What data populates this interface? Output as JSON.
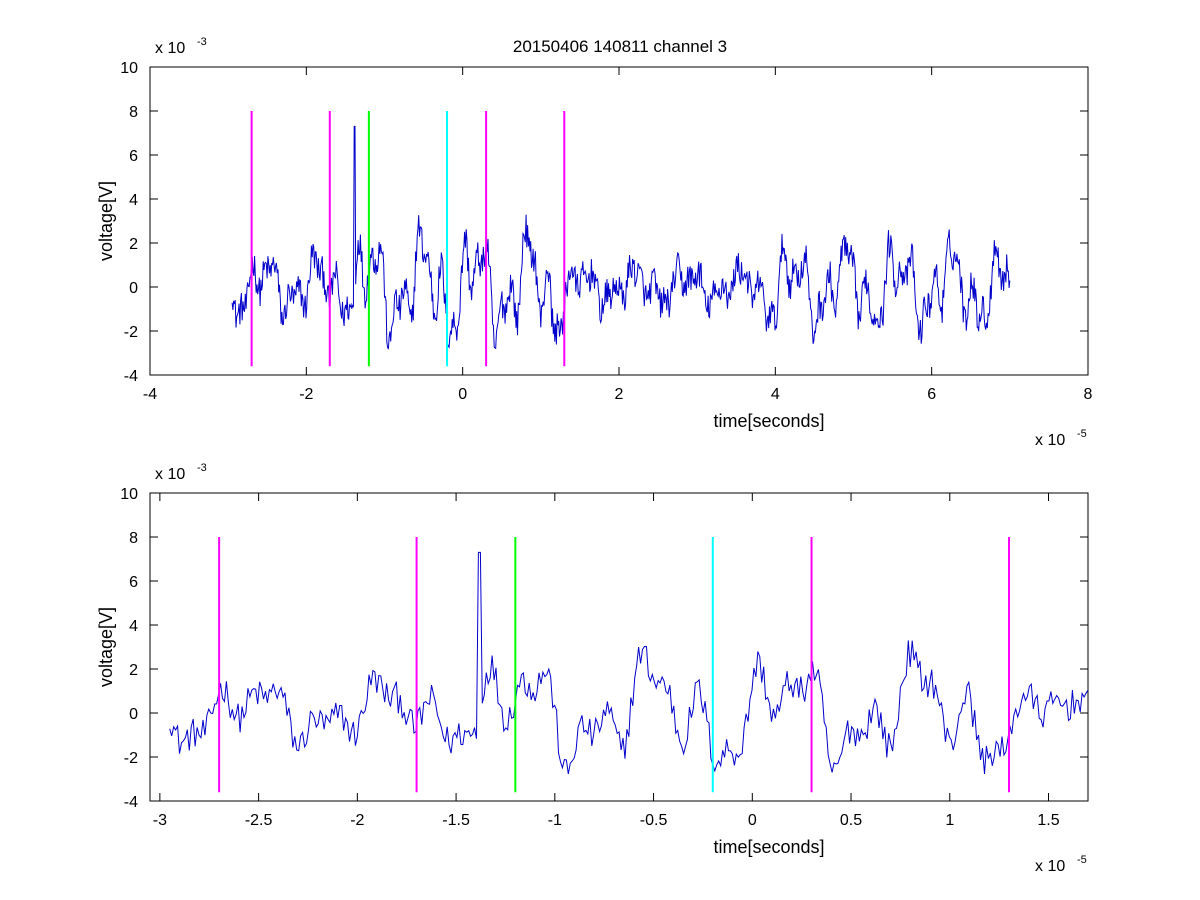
{
  "figure": {
    "title": "20150406 140811 channel 3"
  },
  "chart_data": [
    {
      "type": "line",
      "title": "20150406 140811 channel 3",
      "xlabel": "time[seconds]",
      "ylabel": "voltage[V]",
      "x_exponent_label": "x 10",
      "x_exponent": "-5",
      "y_exponent_label": "x 10",
      "y_exponent": "-3",
      "x_scale": 1e-05,
      "y_scale": 0.001,
      "xlim": [
        -4,
        8
      ],
      "ylim": [
        -4,
        10
      ],
      "x_ticks": [
        -4,
        -2,
        0,
        2,
        4,
        6,
        8
      ],
      "y_ticks": [
        -4,
        -2,
        0,
        2,
        4,
        6,
        8,
        10
      ],
      "x_tick_labels": [
        "-4",
        "-2",
        "0",
        "2",
        "4",
        "6",
        "8"
      ],
      "y_tick_labels": [
        "-4",
        "-2",
        "0",
        "2",
        "4",
        "6",
        "8",
        "10"
      ],
      "grid": false,
      "signal": {
        "color": "#0000cc",
        "x_range": [
          -2.95,
          7.0
        ],
        "samples": 1000,
        "spike": {
          "x": -1.38,
          "y": 7.3
        }
      },
      "markers": [
        {
          "x": -2.7,
          "y_range": [
            -3.6,
            8
          ],
          "color": "#ff00ff"
        },
        {
          "x": -1.7,
          "y_range": [
            -3.6,
            8
          ],
          "color": "#ff00ff"
        },
        {
          "x": -1.2,
          "y_range": [
            -3.6,
            8
          ],
          "color": "#00ff00"
        },
        {
          "x": -0.2,
          "y_range": [
            -3.6,
            8
          ],
          "color": "#00ffff"
        },
        {
          "x": 0.3,
          "y_range": [
            -3.6,
            8
          ],
          "color": "#ff00ff"
        },
        {
          "x": 1.3,
          "y_range": [
            -3.6,
            8
          ],
          "color": "#ff00ff"
        }
      ]
    },
    {
      "type": "line",
      "title": "",
      "xlabel": "time[seconds]",
      "ylabel": "voltage[V]",
      "x_exponent_label": "x 10",
      "x_exponent": "-5",
      "y_exponent_label": "x 10",
      "y_exponent": "-3",
      "x_scale": 1e-05,
      "y_scale": 0.001,
      "xlim": [
        -3.05,
        1.7
      ],
      "ylim": [
        -4,
        10
      ],
      "x_ticks": [
        -3,
        -2.5,
        -2,
        -1.5,
        -1,
        -0.5,
        0,
        0.5,
        1,
        1.5
      ],
      "y_ticks": [
        -4,
        -2,
        0,
        2,
        4,
        6,
        8,
        10
      ],
      "x_tick_labels": [
        "-3",
        "-2.5",
        "-2",
        "-1.5",
        "-1",
        "-0.5",
        "0",
        "0.5",
        "1",
        "1.5"
      ],
      "y_tick_labels": [
        "-4",
        "-2",
        "0",
        "2",
        "4",
        "6",
        "8",
        "10"
      ],
      "grid": false,
      "signal": {
        "color": "#0000cc",
        "x_range": [
          -2.95,
          1.7
        ],
        "samples": 470,
        "spike": {
          "x": -1.38,
          "y": 7.3
        }
      },
      "markers": [
        {
          "x": -2.7,
          "y_range": [
            -3.6,
            8
          ],
          "color": "#ff00ff"
        },
        {
          "x": -1.7,
          "y_range": [
            -3.6,
            8
          ],
          "color": "#ff00ff"
        },
        {
          "x": -1.2,
          "y_range": [
            -3.6,
            8
          ],
          "color": "#00ff00"
        },
        {
          "x": -0.2,
          "y_range": [
            -3.6,
            8
          ],
          "color": "#00ffff"
        },
        {
          "x": 0.3,
          "y_range": [
            -3.6,
            8
          ],
          "color": "#ff00ff"
        },
        {
          "x": 1.3,
          "y_range": [
            -3.6,
            8
          ],
          "color": "#ff00ff"
        }
      ]
    }
  ]
}
